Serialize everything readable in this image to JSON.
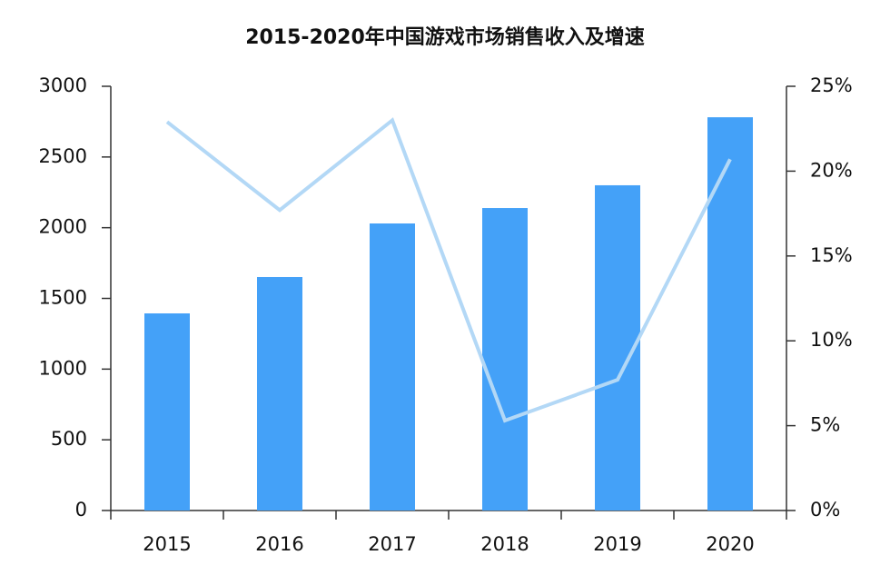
{
  "chart_data": {
    "type": "bar",
    "title": "2015-2020年中国游戏市场销售收入及增速",
    "categories": [
      "2015",
      "2016",
      "2017",
      "2018",
      "2019",
      "2020"
    ],
    "series": [
      {
        "type": "bar",
        "color": "#44a1f8",
        "values": [
          1394,
          1651,
          2030,
          2139,
          2300,
          2781
        ]
      },
      {
        "type": "line",
        "axis": "y2",
        "color": "#b3d8f6",
        "values": [
          22.9,
          17.7,
          23.0,
          5.3,
          7.7,
          20.7
        ]
      }
    ],
    "ylim": [
      0,
      3000
    ],
    "yticks": [
      0,
      500,
      1000,
      1500,
      2000,
      2500,
      3000
    ],
    "y2lim": [
      0,
      25
    ],
    "y2ticks": [
      {
        "value": 0,
        "label": "0%"
      },
      {
        "value": 5,
        "label": "5%"
      },
      {
        "value": 10,
        "label": "10%"
      },
      {
        "value": 15,
        "label": "15%"
      },
      {
        "value": 20,
        "label": "20%"
      },
      {
        "value": 25,
        "label": "25%"
      }
    ],
    "grid": false
  }
}
